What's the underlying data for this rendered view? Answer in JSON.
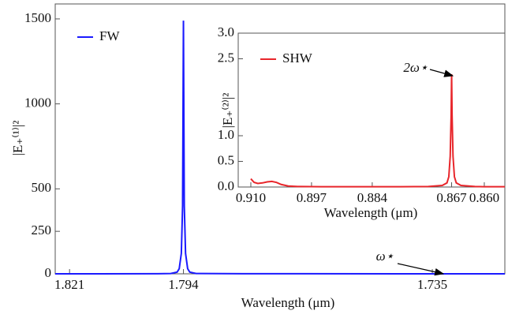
{
  "chart_data": [
    {
      "type": "line",
      "x_label": "Wavelength (μm)",
      "y_label": "|E₊⁽¹⁾|²",
      "xlim": [
        1.8244,
        1.7178
      ],
      "ylim": [
        0,
        1588
      ],
      "xticks": [
        1.821,
        1.794,
        1.735
      ],
      "yticks": [
        0,
        250,
        500,
        1000,
        1500
      ],
      "legend": "top-left",
      "annotation": "ω⋆",
      "x": [
        1.8244,
        1.8,
        1.797,
        1.7955,
        1.795,
        1.7945,
        1.7942,
        1.794,
        1.7938,
        1.7935,
        1.793,
        1.7925,
        1.791,
        1.78,
        1.7178
      ],
      "series": [
        {
          "name": "FW",
          "color": "#1a1aff",
          "values": [
            0,
            0.5,
            2,
            10,
            30,
            120,
            400,
            1490,
            400,
            120,
            30,
            10,
            2,
            0.5,
            0
          ]
        }
      ]
    },
    {
      "type": "line",
      "x_label": "Wavelength (μm)",
      "y_label": "|E₊⁽²⁾|²",
      "xlim": [
        0.9127,
        0.8556
      ],
      "ylim": [
        0,
        3.0
      ],
      "xticks": [
        {
          "value": 0.91,
          "label": "0.910"
        },
        0.897,
        0.884,
        0.867,
        {
          "value": 0.86,
          "label": "0.860"
        }
      ],
      "yticks": [
        {
          "value": 0,
          "label": "0.0"
        },
        0.5,
        {
          "value": 1,
          "label": "1.0"
        },
        2.5,
        {
          "value": 3,
          "label": "3.0"
        }
      ],
      "legend": "top-left",
      "annotation": "2ω⋆",
      "x": [
        0.91,
        0.9093,
        0.9085,
        0.9075,
        0.9065,
        0.9055,
        0.9045,
        0.9035,
        0.902,
        0.9,
        0.895,
        0.89,
        0.88,
        0.872,
        0.869,
        0.868,
        0.8676,
        0.8673,
        0.8671,
        0.867,
        0.8669,
        0.8667,
        0.8664,
        0.866,
        0.865,
        0.862,
        0.86,
        0.8556
      ],
      "series": [
        {
          "name": "SHW",
          "color": "#e8262b",
          "values": [
            0.16,
            0.09,
            0.07,
            0.08,
            0.1,
            0.11,
            0.09,
            0.05,
            0.02,
            0.01,
            0.005,
            0.005,
            0.005,
            0.01,
            0.03,
            0.08,
            0.2,
            0.6,
            1.4,
            2.2,
            1.4,
            0.6,
            0.2,
            0.08,
            0.03,
            0.01,
            0.005,
            0.005
          ]
        }
      ]
    }
  ]
}
